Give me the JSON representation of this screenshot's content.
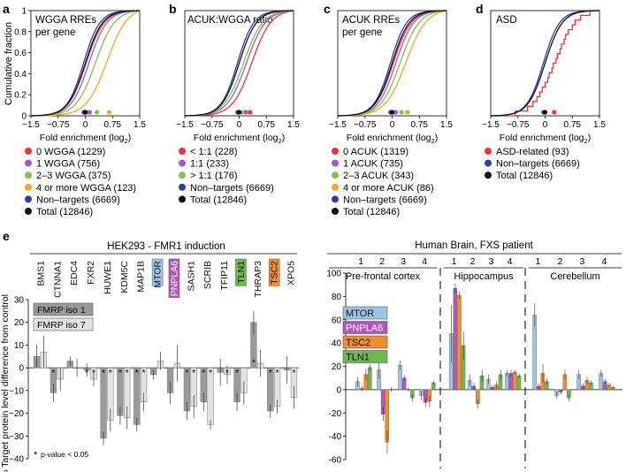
{
  "figure": {
    "colors": {
      "red": "#e8343a",
      "purple": "#a05ac0",
      "green": "#7fc14e",
      "orange": "#f5a623",
      "blue": "#2a3f9e",
      "black": "#111111",
      "gray_dark": "#9a9a9a",
      "gray_light": "#e2e2e2",
      "mtor": "#9dc3e6",
      "pnpla6": "#b157b7",
      "tsc2": "#ef8f2f",
      "tln1": "#6fb84b"
    }
  },
  "chart_data": [
    {
      "panel": "a",
      "type": "line",
      "title": "WGGA RREs per gene",
      "xlabel_main": "Fold enrichment (log",
      "xlabel_sub": "2",
      "xlabel_end": ")",
      "ylabel": "Cumulative fraction",
      "xlim": [
        -1.5,
        1.5
      ],
      "ylim": [
        0,
        1
      ],
      "xticks": [
        "-1.5",
        "-0.75",
        "0",
        "0.75",
        "1.5"
      ],
      "yticks": [
        "0",
        "0.2",
        "0.4",
        "0.6",
        "0.8",
        "1"
      ],
      "series": [
        {
          "name": "0 WGGA (1229)",
          "color": "red",
          "center": 0.02,
          "spread": 0.42,
          "dot": 0.02
        },
        {
          "name": "1 WGGA (756)",
          "color": "purple",
          "center": 0.1,
          "spread": 0.42,
          "dot": 0.12
        },
        {
          "name": "2–3 WGGA (375)",
          "color": "green",
          "center": 0.28,
          "spread": 0.45,
          "dot": 0.32
        },
        {
          "name": "4 or more WGGA (123)",
          "color": "orange",
          "center": 0.6,
          "spread": 0.48,
          "dot": 0.66
        },
        {
          "name": "Non–targets (6669)",
          "color": "blue",
          "center": -0.05,
          "spread": 0.38,
          "dot": -0.04
        },
        {
          "name": "Total (12846)",
          "color": "black",
          "center": 0.0,
          "spread": 0.4,
          "dot": 0.0
        }
      ]
    },
    {
      "panel": "b",
      "type": "line",
      "title": "ACUK:WGGA ratio",
      "xlabel_main": "Fold enrichment (log",
      "xlabel_sub": "2",
      "xlabel_end": ")",
      "xlim": [
        -1.5,
        1.5
      ],
      "ylim": [
        0,
        1
      ],
      "xticks": [
        "-1.5",
        "-0.75",
        "0",
        "0.75",
        "1.5"
      ],
      "series": [
        {
          "name": "< 1:1 (228)",
          "color": "red",
          "center": 0.35,
          "spread": 0.45,
          "dot": 0.3
        },
        {
          "name": "1:1 (233)",
          "color": "purple",
          "center": 0.2,
          "spread": 0.45,
          "dot": 0.18
        },
        {
          "name": "> 1:1 (176)",
          "color": "green",
          "center": 0.12,
          "spread": 0.45,
          "dot": 0.08
        },
        {
          "name": "Non–targets (6669)",
          "color": "blue",
          "center": -0.05,
          "spread": 0.38,
          "dot": -0.04
        },
        {
          "name": "Total (12846)",
          "color": "black",
          "center": 0.0,
          "spread": 0.4,
          "dot": 0.0
        }
      ]
    },
    {
      "panel": "c",
      "type": "line",
      "title": "ACUK RREs per gene",
      "xlabel_main": "Fold enrichment (log",
      "xlabel_sub": "2",
      "xlabel_end": ")",
      "xlim": [
        -1.5,
        1.5
      ],
      "ylim": [
        0,
        1
      ],
      "xticks": [
        "-1.5",
        "-0.75",
        "0",
        "0.75",
        "1.5"
      ],
      "series": [
        {
          "name": "0 ACUK (1319)",
          "color": "red",
          "center": 0.03,
          "spread": 0.42,
          "dot": 0.03
        },
        {
          "name": "1 ACUK (735)",
          "color": "purple",
          "center": 0.1,
          "spread": 0.42,
          "dot": 0.1
        },
        {
          "name": "2–3 ACUK (343)",
          "color": "green",
          "center": 0.22,
          "spread": 0.45,
          "dot": 0.26
        },
        {
          "name": "4 or more ACUK (86)",
          "color": "orange",
          "center": 0.38,
          "spread": 0.48,
          "dot": 0.42
        },
        {
          "name": "Non–targets (6669)",
          "color": "blue",
          "center": -0.05,
          "spread": 0.38,
          "dot": -0.04
        },
        {
          "name": "Total (12846)",
          "color": "black",
          "center": 0.0,
          "spread": 0.4,
          "dot": 0.0
        }
      ]
    },
    {
      "panel": "d",
      "type": "line",
      "title": "ASD",
      "xlabel_main": "Fold enrichment (log",
      "xlabel_sub": "2",
      "xlabel_end": ")",
      "xlim": [
        -1.5,
        1.5
      ],
      "ylim": [
        0,
        1
      ],
      "xticks": [
        "-1.5",
        "-0.75",
        "0",
        "0.75",
        "1.5"
      ],
      "series": [
        {
          "name": "ASD-related (93)",
          "color": "red",
          "center": 0.25,
          "spread": 0.5,
          "dot": 0.25,
          "jagged": true
        },
        {
          "name": "Non–targets (6669)",
          "color": "blue",
          "center": -0.05,
          "spread": 0.38,
          "dot": -0.04
        },
        {
          "name": "Total (12846)",
          "color": "black",
          "center": 0.0,
          "spread": 0.4,
          "dot": 0.0
        }
      ]
    },
    {
      "panel": "e",
      "type": "bar",
      "title": "HEK293 - FMR1 induction",
      "ylabel": "% Target protein level difference from control",
      "ylim": [
        -40,
        30
      ],
      "yticks": [
        "-40",
        "-30",
        "-20",
        "-10",
        "0",
        "10",
        "20",
        "30"
      ],
      "legend": [
        "FMRP iso 1",
        "FMRP iso 7"
      ],
      "footnote_star": "*",
      "footnote": "p-value < 0.05",
      "categories": [
        "BMS1",
        "CTNNA1",
        "EDC4",
        "FXR2",
        "HUWE1",
        "KDM5C",
        "MAP1B",
        "MTOR",
        "PNPLA6",
        "SASH1",
        "SCRIB",
        "TFIP11",
        "TLN1",
        "THRAP3",
        "TSC2",
        "XPO5"
      ],
      "highlight": {
        "MTOR": "mtor",
        "PNPLA6": "pnpla6",
        "TLN1": "tln1",
        "TSC2": "tsc2"
      },
      "series": [
        {
          "name": "FMRP iso 1",
          "values": [
            5,
            -11,
            3,
            -1,
            -31,
            -21,
            -25,
            -3,
            -11,
            -19,
            -15,
            -2,
            -15,
            20,
            -19,
            -1
          ],
          "errors": [
            5,
            4,
            2,
            3,
            3,
            4,
            3,
            2,
            5,
            4,
            4,
            6,
            4,
            5,
            3,
            6
          ],
          "sig": [
            false,
            true,
            false,
            true,
            true,
            true,
            true,
            false,
            false,
            true,
            true,
            false,
            true,
            true,
            true,
            false
          ]
        },
        {
          "name": "FMRP iso 7",
          "values": [
            7,
            -5,
            0,
            -5,
            -23,
            -22,
            -15,
            3,
            2,
            -17,
            -25,
            -3,
            -11,
            2,
            -17,
            -13
          ],
          "errors": [
            7,
            5,
            4,
            3,
            5,
            5,
            4,
            4,
            8,
            5,
            2,
            4,
            5,
            6,
            3,
            5
          ],
          "sig": [
            false,
            false,
            false,
            true,
            true,
            true,
            true,
            false,
            false,
            true,
            true,
            true,
            false,
            false,
            true,
            true
          ]
        }
      ],
      "star_iso1_up": "THRAP3"
    },
    {
      "panel": "e-right",
      "type": "bar",
      "title": "Human Brain, FXS patient",
      "ylim": [
        -60,
        100
      ],
      "yticks": [
        "-60",
        "-40",
        "-20",
        "0",
        "20",
        "40",
        "60",
        "80",
        "100"
      ],
      "regions": [
        "Pre-frontal cortex",
        "Hippocampus",
        "Cerebellum"
      ],
      "sample_labels": [
        "1",
        "2",
        "3",
        "4"
      ],
      "legend": [
        "MTOR",
        "PNPLA6",
        "TSC2",
        "TLN1"
      ],
      "series_colors": [
        "mtor",
        "pnpla6",
        "tsc2",
        "tln1"
      ],
      "groups": [
        {
          "values": [
            7,
            1,
            13,
            19
          ],
          "errors": [
            4,
            2,
            5,
            3
          ]
        },
        {
          "values": [
            17,
            -21,
            -45,
            0
          ],
          "errors": [
            8,
            6,
            10,
            2
          ]
        },
        {
          "values": [
            21,
            10,
            0,
            -7
          ],
          "errors": [
            4,
            2,
            2,
            3
          ]
        },
        {
          "values": [
            -5,
            -11,
            -10,
            6
          ],
          "errors": [
            4,
            4,
            5,
            2
          ]
        },
        {
          "values": [
            48,
            87,
            81,
            38
          ],
          "errors": [
            25,
            4,
            3,
            12
          ]
        },
        {
          "values": [
            8,
            3,
            -12,
            12
          ],
          "errors": [
            5,
            3,
            4,
            5
          ]
        },
        {
          "values": [
            9,
            2,
            4,
            13
          ],
          "errors": [
            4,
            2,
            3,
            4
          ]
        },
        {
          "values": [
            14,
            14,
            15,
            12
          ],
          "errors": [
            3,
            3,
            2,
            2
          ]
        },
        {
          "values": [
            64,
            3,
            14,
            7
          ],
          "errors": [
            10,
            2,
            8,
            3
          ]
        },
        {
          "values": [
            -5,
            -2,
            13,
            -7
          ],
          "errors": [
            3,
            2,
            4,
            3
          ]
        },
        {
          "values": [
            13,
            3,
            8,
            6
          ],
          "errors": [
            4,
            2,
            3,
            2
          ]
        },
        {
          "values": [
            14,
            7,
            4,
            2
          ],
          "errors": [
            3,
            2,
            2,
            1
          ]
        }
      ]
    }
  ]
}
